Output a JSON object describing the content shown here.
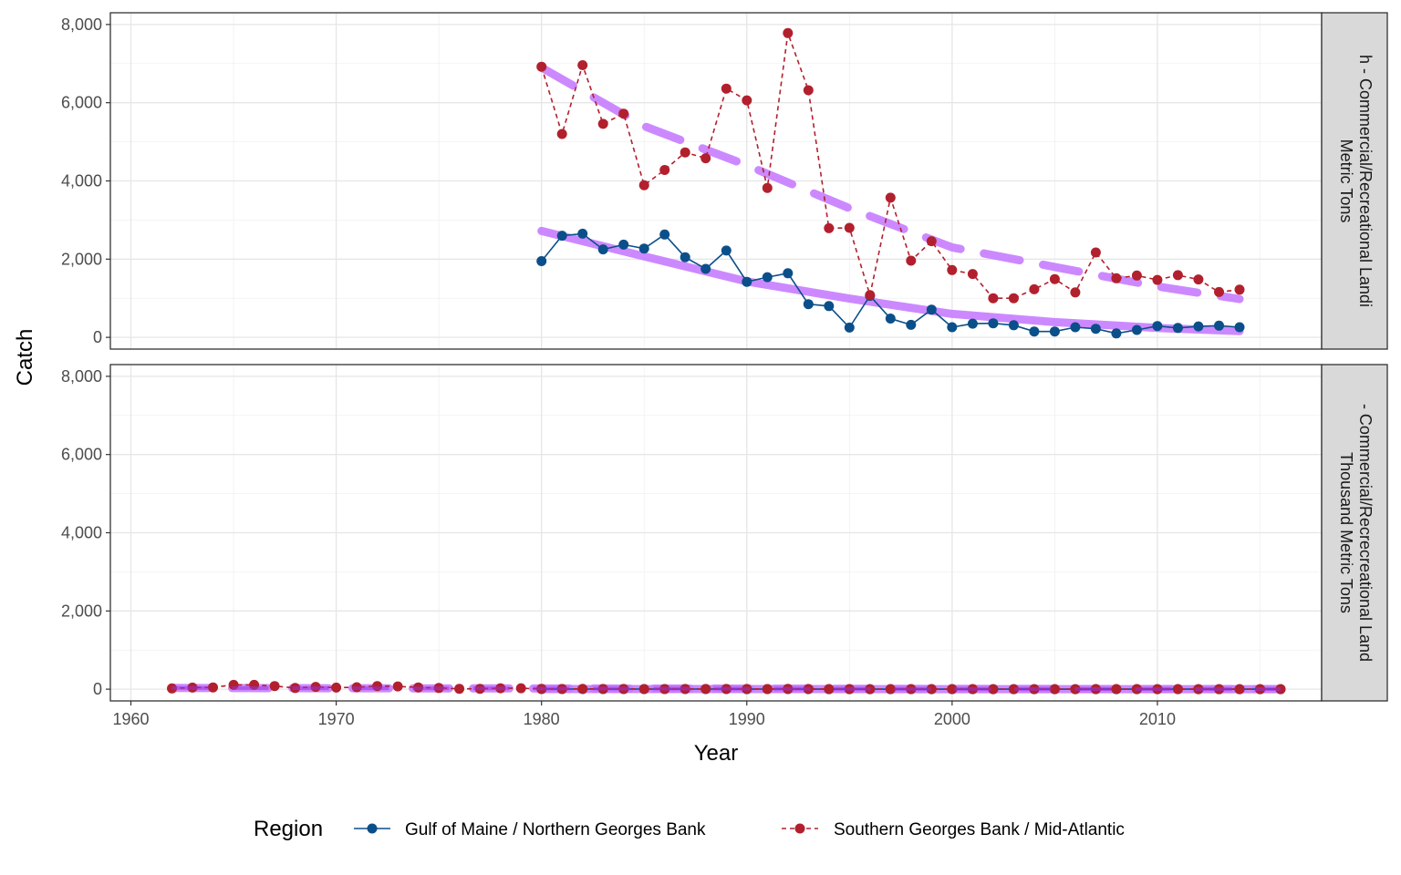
{
  "chart_data": {
    "type": "line",
    "xlabel": "Year",
    "ylabel": "Catch",
    "xlim": [
      1959,
      2018
    ],
    "ylim": [
      -300,
      8300
    ],
    "x_ticks": [
      1960,
      1970,
      1980,
      1990,
      2000,
      2010
    ],
    "y_ticks": [
      0,
      2000,
      4000,
      6000,
      8000
    ],
    "y_tick_labels": [
      "0",
      "2,000",
      "4,000",
      "6,000",
      "8,000"
    ],
    "grid": true,
    "legend": {
      "position": "bottom",
      "title": "Region",
      "entries": [
        {
          "key": "gom",
          "label": "Gulf of Maine / Northern Georges Bank",
          "color": "#0b4f8a",
          "linestyle": "solid"
        },
        {
          "key": "sgb",
          "label": "Southern Georges Bank / Mid-Atlantic",
          "color": "#b2202e",
          "linestyle": "dashed"
        }
      ]
    },
    "trend_color": "#c77cff",
    "trend_color_dark": "#9b30e0",
    "panels": [
      {
        "strip_lines": [
          "h - Commercial/Recreational Landi",
          "Metric Tons"
        ],
        "series": [
          {
            "name": "Gulf of Maine / Northern Georges Bank",
            "color": "#0b4f8a",
            "linestyle": "solid",
            "x": [
              1980,
              1981,
              1982,
              1983,
              1984,
              1985,
              1986,
              1987,
              1988,
              1989,
              1990,
              1991,
              1992,
              1993,
              1994,
              1995,
              1996,
              1997,
              1998,
              1999,
              2000,
              2001,
              2002,
              2003,
              2004,
              2005,
              2006,
              2007,
              2008,
              2009,
              2010,
              2011,
              2012,
              2013,
              2014
            ],
            "y": [
              1950,
              2600,
              2650,
              2250,
              2370,
              2270,
              2630,
              2050,
              1750,
              2220,
              1420,
              1540,
              1640,
              850,
              800,
              250,
              1060,
              480,
              320,
              710,
              260,
              350,
              360,
              310,
              150,
              150,
              260,
              220,
              100,
              190,
              290,
              240,
              280,
              300,
              260
            ]
          },
          {
            "name": "Southern Georges Bank / Mid-Atlantic",
            "color": "#b2202e",
            "linestyle": "dashed",
            "x": [
              1980,
              1981,
              1982,
              1983,
              1984,
              1985,
              1986,
              1987,
              1988,
              1989,
              1990,
              1991,
              1992,
              1993,
              1994,
              1995,
              1996,
              1997,
              1998,
              1999,
              2000,
              2001,
              2002,
              2003,
              2004,
              2005,
              2006,
              2007,
              2008,
              2009,
              2010,
              2011,
              2012,
              2013,
              2014
            ],
            "y": [
              6920,
              5200,
              6960,
              5460,
              5720,
              3890,
              4280,
              4730,
              4580,
              6360,
              6060,
              3820,
              7780,
              6320,
              2790,
              2800,
              1080,
              3570,
              1960,
              2460,
              1720,
              1620,
              1000,
              1000,
              1230,
              1490,
              1150,
              2170,
              1510,
              1580,
              1470,
              1590,
              1480,
              1160,
              1220
            ]
          }
        ],
        "trends": [
          {
            "style": "solid",
            "x": [
              1980,
              1985,
              1990,
              1995,
              2000,
              2005,
              2010,
              2014
            ],
            "y": [
              2720,
              2070,
              1430,
              990,
              600,
              390,
              240,
              160
            ]
          },
          {
            "style": "dashed",
            "x": [
              1980,
              1985,
              1990,
              1995,
              2000,
              2005,
              2010,
              2014
            ],
            "y": [
              6900,
              5400,
              4400,
              3300,
              2300,
              1800,
              1300,
              980
            ]
          }
        ]
      },
      {
        "strip_lines": [
          "- Commercial/Recrecreational Land",
          "Thousand Metric Tons"
        ],
        "series": [
          {
            "name": "Gulf of Maine / Northern Georges Bank",
            "color": "#0b4f8a",
            "linestyle": "solid",
            "x": [
              1980,
              1981,
              1982,
              1983,
              1984,
              1985,
              1986,
              1987,
              1988,
              1989,
              1990,
              1991,
              1992,
              1993,
              1994,
              1995,
              1996,
              1997,
              1998,
              1999,
              2000,
              2001,
              2002,
              2003,
              2004,
              2005,
              2006,
              2007,
              2008,
              2009,
              2010,
              2011,
              2012,
              2013,
              2014,
              2015,
              2016
            ],
            "y": [
              2,
              3,
              3,
              2,
              2,
              2,
              3,
              2,
              2,
              2,
              1,
              2,
              2,
              1,
              1,
              0,
              1,
              0,
              0,
              1,
              0,
              0,
              0,
              0,
              0,
              0,
              0,
              0,
              0,
              0,
              0,
              0,
              0,
              0,
              0,
              0,
              0
            ]
          },
          {
            "name": "Southern Georges Bank / Mid-Atlantic",
            "color": "#b2202e",
            "linestyle": "dashed",
            "x": [
              1962,
              1963,
              1964,
              1965,
              1966,
              1967,
              1968,
              1969,
              1970,
              1971,
              1972,
              1973,
              1974,
              1975,
              1976,
              1977,
              1978,
              1979,
              1980,
              1981,
              1982,
              1983,
              1984,
              1985,
              1986,
              1987,
              1988,
              1989,
              1990,
              1991,
              1992,
              1993,
              1994,
              1995,
              1996,
              1997,
              1998,
              1999,
              2000,
              2001,
              2002,
              2003,
              2004,
              2005,
              2006,
              2007,
              2008,
              2009,
              2010,
              2011,
              2012,
              2013,
              2014,
              2015,
              2016
            ],
            "y": [
              20,
              40,
              45,
              110,
              110,
              80,
              30,
              60,
              40,
              50,
              80,
              70,
              45,
              30,
              10,
              10,
              25,
              25,
              7,
              5,
              7,
              5,
              6,
              4,
              4,
              5,
              5,
              6,
              6,
              4,
              8,
              6,
              3,
              3,
              1,
              4,
              2,
              2,
              2,
              2,
              1,
              1,
              1,
              1,
              1,
              2,
              2,
              2,
              1,
              2,
              1,
              1,
              1,
              1,
              1
            ]
          }
        ],
        "trends": [
          {
            "style": "dashed",
            "x": [
              1962,
              1970,
              1978,
              1986,
              1994,
              2002,
              2010,
              2016
            ],
            "y": [
              30,
              25,
              20,
              15,
              10,
              6,
              3,
              2
            ]
          },
          {
            "style": "solid",
            "x": [
              1980,
              1990,
              2000,
              2010,
              2016
            ],
            "y": [
              3,
              2,
              1,
              0,
              0
            ]
          }
        ]
      }
    ]
  }
}
